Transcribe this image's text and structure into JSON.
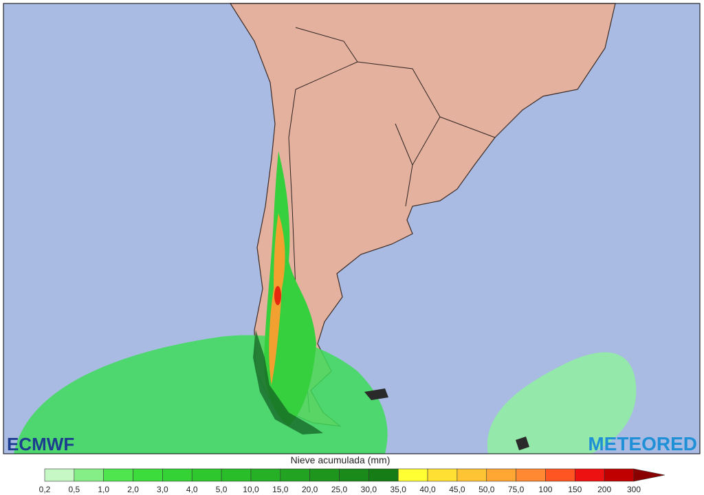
{
  "map": {
    "logo_left": "ECMWF",
    "logo_right": "METEORED"
  },
  "legend": {
    "title": "Nieve acumulada (mm)",
    "labels": [
      "0,2",
      "0,5",
      "1,0",
      "2,0",
      "3,0",
      "4,0",
      "5,0",
      "10,0",
      "15,0",
      "20,0",
      "25,0",
      "30,0",
      "35,0",
      "40,0",
      "45,0",
      "50,0",
      "75,0",
      "100",
      "150",
      "200",
      "300"
    ],
    "colors": [
      "#c6f8c6",
      "#86ee86",
      "#4fe54f",
      "#3ddc3d",
      "#35d235",
      "#2ec82e",
      "#2abd2a",
      "#26b026",
      "#22a322",
      "#1e961e",
      "#1a8a1a",
      "#167c16",
      "#ffff33",
      "#ffe033",
      "#ffc433",
      "#ffa633",
      "#ff8833",
      "#ff5522",
      "#ee1111",
      "#c00000"
    ],
    "arrow_color": "#8a0000"
  }
}
